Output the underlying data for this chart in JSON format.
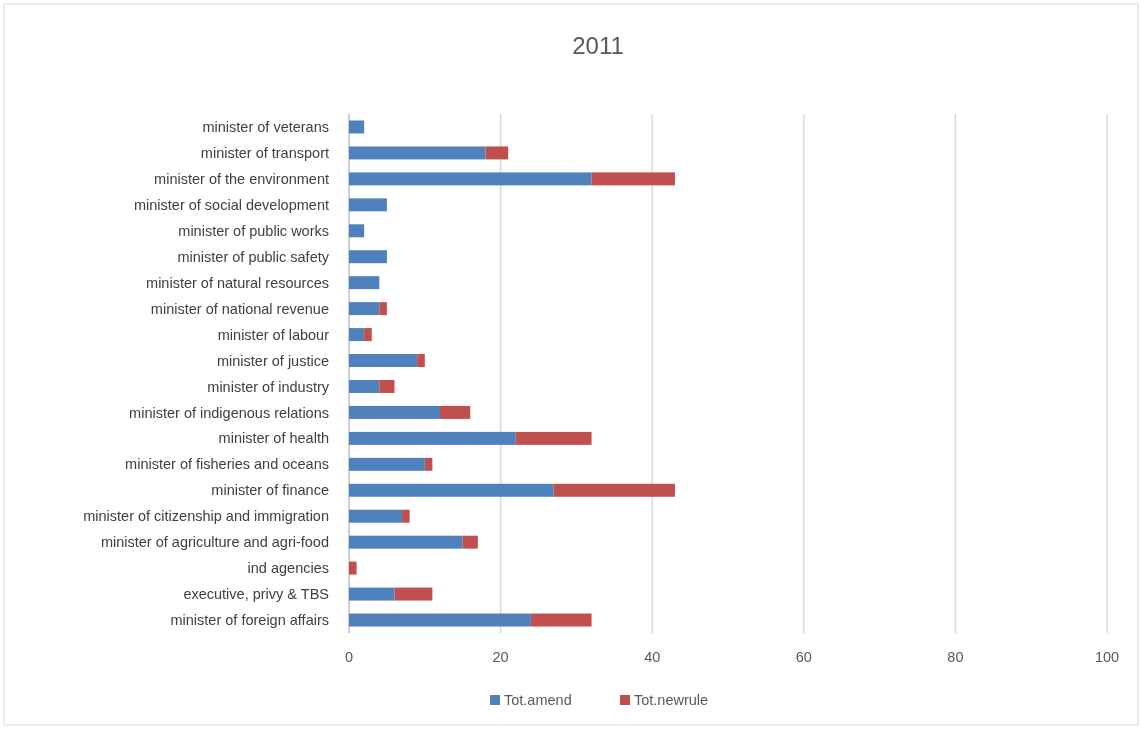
{
  "chart_data": {
    "type": "bar",
    "orientation": "horizontal",
    "stacked": true,
    "title": "2011",
    "categories": [
      "minister of veterans",
      "minister of transport",
      "minister of the environment",
      "minister of social development",
      "minister of public works",
      "minister of public safety",
      "minister of natural resources",
      "minister of national revenue",
      "minister of labour",
      "minister of justice",
      "minister of industry",
      "minister of indigenous relations",
      "minister of health",
      "minister of fisheries and oceans",
      "minister of finance",
      "minister of citizenship and immigration",
      "minister of agriculture and agri-food",
      "ind agencies",
      "executive, privy & TBS",
      "minister of foreign affairs"
    ],
    "series": [
      {
        "name": "Tot.amend",
        "color": "#4f81bd",
        "values": [
          2,
          18,
          32,
          5,
          2,
          5,
          4,
          4,
          2,
          9,
          4,
          12,
          22,
          10,
          27,
          7,
          15,
          0,
          6,
          24
        ]
      },
      {
        "name": "Tot.newrule",
        "color": "#c0504d",
        "values": [
          0,
          3,
          11,
          0,
          0,
          0,
          0,
          1,
          1,
          1,
          2,
          4,
          10,
          1,
          16,
          1,
          2,
          1,
          5,
          8
        ]
      }
    ],
    "xlim": [
      0,
      100
    ],
    "xticks": [
      0,
      20,
      40,
      60,
      80,
      100
    ],
    "grid": "x",
    "legend": "bottom"
  }
}
